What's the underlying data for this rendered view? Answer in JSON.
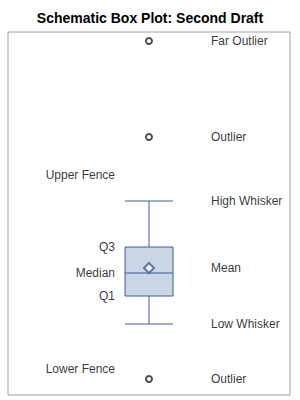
{
  "chart_data": {
    "type": "boxplot",
    "title": "Schematic Box Plot: Second Draft",
    "color": "#cad5e5",
    "tick_labels": false,
    "ylim": [
      0,
      36.3
    ],
    "low_whisker": {
      "value": 7.1,
      "label": "Low Whisker"
    },
    "q1": {
      "value": 9.9,
      "label": "Q1"
    },
    "median": {
      "value": 12.2,
      "label": "Median"
    },
    "q3": {
      "value": 14.8,
      "label": "Q3"
    },
    "high_whisker": {
      "value": 19.4,
      "label": "High Whisker"
    },
    "mean": {
      "value": 12.7,
      "label": "Mean"
    },
    "upper_fence": {
      "value": 22,
      "label": "Upper Fence"
    },
    "lower_fence": {
      "value": 2.6,
      "label": "Lower Fence"
    },
    "outliers": [
      {
        "value": 35.4,
        "label": "Far Outlier"
      },
      {
        "value": 25.8,
        "label": "Outlier"
      },
      {
        "value": 1.6,
        "label": "Outlier"
      }
    ]
  }
}
